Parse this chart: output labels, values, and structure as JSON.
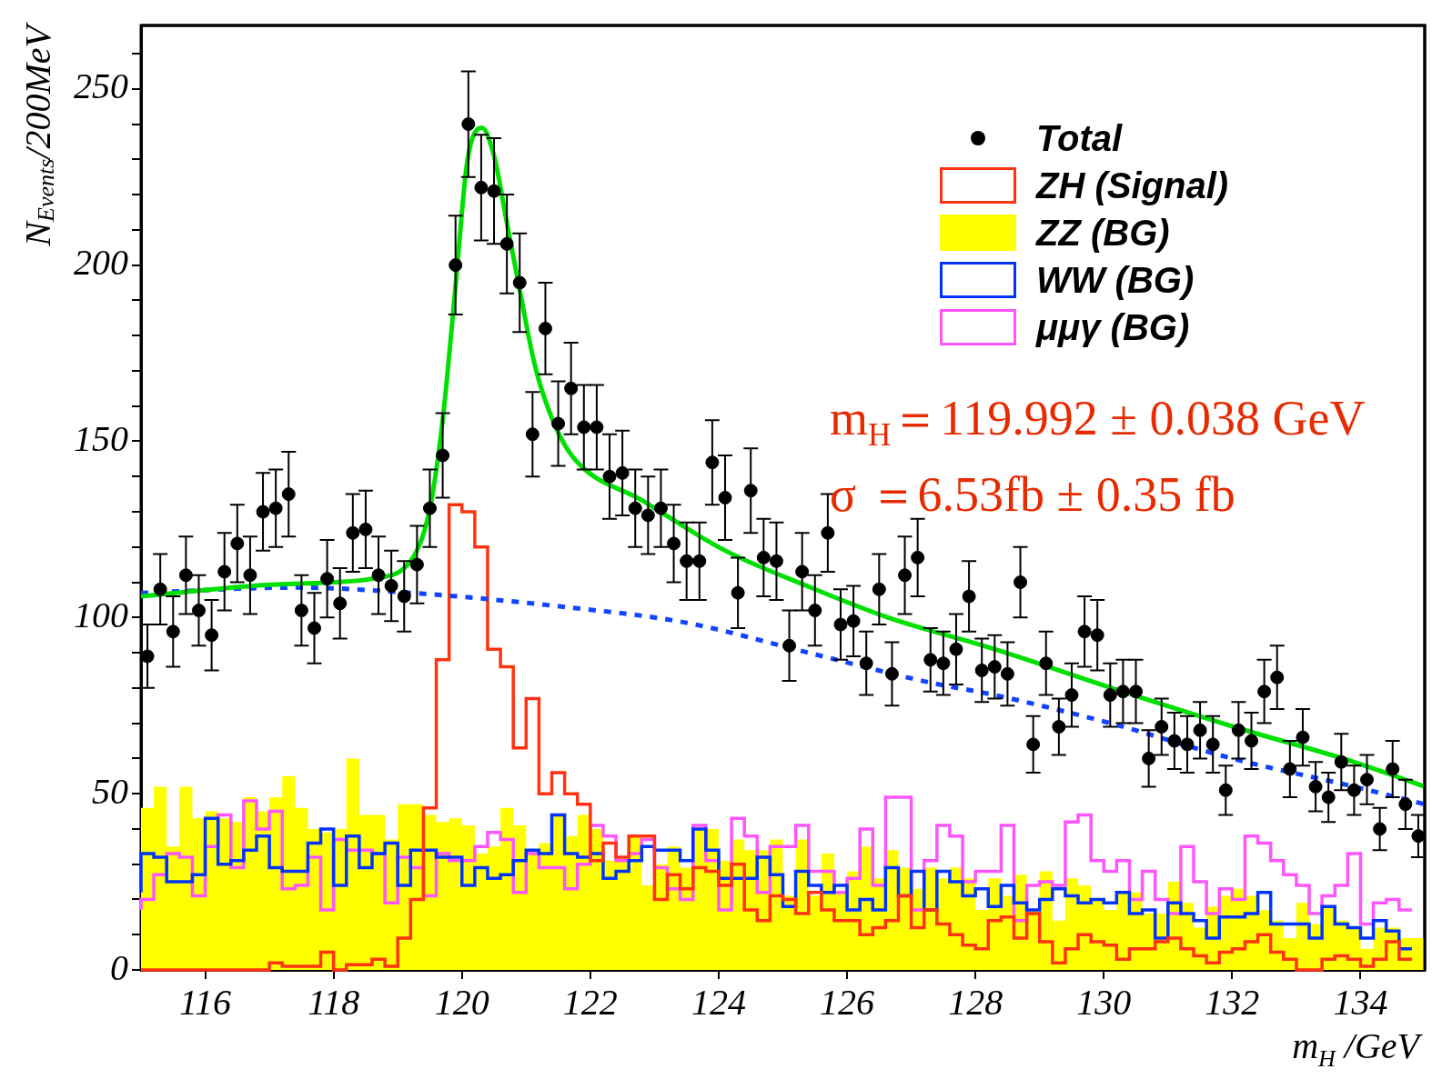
{
  "chart_data": {
    "type": "histogram",
    "xlabel": "m$_{H}$ /GeV",
    "ylabel": "N$_{Events}$/200MeV",
    "annotations": [
      "m$_{H}$＝119.992 ± 0.038 GeV",
      "σ ＝6.53fb ± 0.35 fb"
    ],
    "xlim": [
      115,
      135
    ],
    "xticks": [
      116,
      118,
      120,
      122,
      124,
      126,
      128,
      130,
      132,
      134
    ],
    "ylim": [
      0,
      268
    ],
    "yticks": [
      0,
      {
        "value": 10,
        "label": null
      },
      {
        "value": 20,
        "label": null
      },
      {
        "value": 30,
        "label": null
      },
      {
        "value": 40,
        "label": null
      },
      50,
      {
        "value": 60,
        "label": null
      },
      {
        "value": 70,
        "label": null
      },
      {
        "value": 80,
        "label": null
      },
      {
        "value": 90,
        "label": null
      },
      100,
      {
        "value": 110,
        "label": null
      },
      {
        "value": 120,
        "label": null
      },
      {
        "value": 130,
        "label": null
      },
      {
        "value": 140,
        "label": null
      },
      150,
      {
        "value": 160,
        "label": null
      },
      {
        "value": 170,
        "label": null
      },
      {
        "value": 180,
        "label": null
      },
      {
        "value": 190,
        "label": null
      },
      200,
      {
        "value": 210,
        "label": null
      },
      {
        "value": 220,
        "label": null
      },
      {
        "value": 230,
        "label": null
      },
      {
        "value": 240,
        "label": null
      },
      250,
      {
        "value": 260,
        "label": null
      }
    ],
    "legend": "top right",
    "bins": [
      115,
      115.2,
      115.4,
      115.6,
      115.8,
      116,
      116.2,
      116.4,
      116.6,
      116.8,
      117,
      117.2,
      117.4,
      117.6,
      117.8,
      118,
      118.2,
      118.4,
      118.6,
      118.8,
      119,
      119.2,
      119.4,
      119.6,
      119.8,
      120,
      120.2,
      120.4,
      120.6,
      120.8,
      121,
      121.2,
      121.4,
      121.6,
      121.8,
      122,
      122.2,
      122.4,
      122.6,
      122.8,
      123,
      123.2,
      123.4,
      123.6,
      123.8,
      124,
      124.2,
      124.4,
      124.6,
      124.8,
      125,
      125.2,
      125.4,
      125.6,
      125.8,
      126,
      126.2,
      126.4,
      126.6,
      126.8,
      127,
      127.2,
      127.4,
      127.6,
      127.8,
      128,
      128.2,
      128.4,
      128.6,
      128.8,
      129,
      129.2,
      129.4,
      129.6,
      129.8,
      130,
      130.2,
      130.4,
      130.6,
      130.8,
      131,
      131.2,
      131.4,
      131.6,
      131.8,
      132,
      132.2,
      132.4,
      132.6,
      132.8,
      133,
      133.2,
      133.4,
      133.6,
      133.8,
      134,
      134.2,
      134.4,
      134.6,
      134.8,
      135
    ],
    "series": [
      {
        "name": "Total",
        "type": "scatter",
        "marker": "circle",
        "color": "#000000",
        "x": [
          115.1,
          115.3,
          115.5,
          115.7,
          115.9,
          116.1,
          116.3,
          116.5,
          116.7,
          116.9,
          117.1,
          117.3,
          117.5,
          117.7,
          117.9,
          118.1,
          118.3,
          118.5,
          118.7,
          118.9,
          119.1,
          119.3,
          119.5,
          119.7,
          119.9,
          120.1,
          120.3,
          120.5,
          120.7,
          120.9,
          121.1,
          121.3,
          121.5,
          121.7,
          121.9,
          122.1,
          122.3,
          122.5,
          122.7,
          122.9,
          123.1,
          123.3,
          123.5,
          123.7,
          123.9,
          124.1,
          124.3,
          124.5,
          124.7,
          124.9,
          125.1,
          125.3,
          125.5,
          125.7,
          125.9,
          126.1,
          126.3,
          126.5,
          126.7,
          126.9,
          127.1,
          127.3,
          127.5,
          127.7,
          127.9,
          128.1,
          128.3,
          128.5,
          128.7,
          128.9,
          129.1,
          129.3,
          129.5,
          129.7,
          129.9,
          130.1,
          130.3,
          130.5,
          130.7,
          130.9,
          131.1,
          131.3,
          131.5,
          131.7,
          131.9,
          132.1,
          132.3,
          132.5,
          132.7,
          132.9,
          133.1,
          133.3,
          133.5,
          133.7,
          133.9,
          134.1,
          134.3,
          134.5,
          134.7,
          134.9
        ],
        "values": [
          89,
          108,
          96,
          112,
          102,
          95,
          113,
          121,
          112,
          130,
          131,
          135,
          102,
          97,
          111,
          104,
          124,
          125,
          112,
          109,
          106,
          115,
          131,
          146,
          200,
          240,
          222,
          221,
          206,
          195,
          152,
          182,
          155,
          165,
          154,
          154,
          140,
          141,
          131,
          129,
          131,
          121,
          116,
          116,
          144,
          134,
          107,
          136,
          117,
          116,
          92,
          113,
          102,
          124,
          98,
          99,
          87,
          108,
          84,
          112,
          117,
          88,
          87,
          91,
          106,
          85,
          86,
          84,
          110,
          64,
          87,
          69,
          78,
          96,
          95,
          78,
          79,
          79,
          60,
          69,
          65,
          64,
          68,
          64,
          51,
          68,
          65,
          79,
          83,
          57,
          66,
          52,
          49,
          59,
          51,
          54,
          40,
          57,
          47,
          38
        ],
        "errors": [
          9,
          10,
          10,
          11,
          10,
          10,
          11,
          11,
          11,
          11,
          11,
          12,
          10,
          10,
          11,
          10,
          11,
          11,
          11,
          10,
          10,
          11,
          11,
          12,
          14,
          15,
          15,
          15,
          14,
          14,
          12,
          13,
          12,
          13,
          12,
          12,
          12,
          12,
          11,
          11,
          11,
          11,
          11,
          11,
          12,
          12,
          10,
          12,
          11,
          11,
          10,
          11,
          10,
          11,
          10,
          10,
          9,
          10,
          9,
          11,
          11,
          9,
          9,
          10,
          10,
          9,
          9,
          9,
          10,
          8,
          9,
          8,
          9,
          10,
          10,
          9,
          9,
          9,
          8,
          8,
          8,
          8,
          8,
          8,
          7,
          8,
          8,
          9,
          9,
          8,
          8,
          7,
          7,
          8,
          7,
          7,
          6,
          8,
          7,
          6
        ]
      },
      {
        "name": "ZH (Signal)",
        "type": "step",
        "color": "#ff3311",
        "x": [
          115,
          115.2,
          115.4,
          115.6,
          115.8,
          116,
          116.2,
          116.4,
          116.6,
          116.8,
          117,
          117.2,
          117.4,
          117.6,
          117.8,
          118,
          118.2,
          118.4,
          118.6,
          118.8,
          119,
          119.2,
          119.4,
          119.6,
          119.8,
          120,
          120.2,
          120.4,
          120.6,
          120.8,
          121,
          121.2,
          121.4,
          121.6,
          121.8,
          122,
          122.2,
          122.4,
          122.6,
          122.8,
          123,
          123.2,
          123.4,
          123.6,
          123.8,
          124,
          124.2,
          124.4,
          124.6,
          124.8,
          125,
          125.2,
          125.4,
          125.6,
          125.8,
          126,
          126.2,
          126.4,
          126.6,
          126.8,
          127,
          127.2,
          127.4,
          127.6,
          127.8,
          128,
          128.2,
          128.4,
          128.6,
          128.8,
          129,
          129.2,
          129.4,
          129.6,
          129.8,
          130,
          130.2,
          130.4,
          130.6,
          130.8,
          131,
          131.2,
          131.4,
          131.6,
          131.8,
          132,
          132.2,
          132.4,
          132.6,
          132.8,
          133,
          133.2,
          133.4,
          133.6,
          133.8,
          134,
          134.2,
          134.4,
          134.6,
          134.8
        ],
        "values": [
          0,
          0,
          0,
          0,
          0,
          0,
          0,
          0,
          0,
          0,
          0,
          2,
          1,
          1,
          1,
          5,
          0,
          1.5,
          1.5,
          3,
          1,
          9,
          20,
          46,
          88,
          132,
          130,
          120,
          91,
          86,
          63,
          77,
          50,
          56,
          50,
          47,
          31,
          36,
          32,
          38,
          38,
          20,
          27,
          23,
          29,
          28,
          24,
          30,
          17,
          14,
          21,
          20,
          16,
          22,
          17,
          14,
          14,
          10,
          12,
          14,
          21,
          12,
          17,
          13,
          10,
          7,
          6,
          14,
          15,
          9,
          16,
          8,
          2,
          6,
          10,
          8,
          7,
          3,
          6,
          6,
          8,
          9,
          6,
          4,
          2,
          5,
          6,
          8,
          10,
          5,
          3,
          0,
          0,
          3,
          4,
          3,
          1,
          3,
          8,
          3
        ]
      },
      {
        "name": "ZZ (BG)",
        "color": "#ffff00",
        "values": [
          46,
          52,
          35,
          52,
          43,
          45,
          43,
          42,
          49,
          45,
          49,
          55,
          46,
          40,
          39,
          40,
          60,
          44,
          44,
          37,
          47,
          47,
          44,
          42,
          43,
          41,
          33,
          35,
          46,
          41,
          34,
          36,
          44,
          38,
          44,
          40,
          31,
          31,
          38,
          24,
          30,
          35,
          29,
          40,
          40,
          31,
          37,
          34,
          34,
          37,
          21,
          37,
          21,
          33,
          22,
          28,
          35,
          26,
          34,
          29,
          23,
          29,
          26,
          29,
          26,
          17,
          26,
          21,
          27,
          17,
          28,
          14,
          26,
          24,
          20,
          17,
          22,
          22,
          16,
          16,
          25,
          19,
          12,
          18,
          21,
          23,
          21,
          17,
          14,
          9,
          19,
          13,
          18,
          14,
          12,
          6,
          12,
          12,
          9,
          9
        ]
      },
      {
        "name": "WW (BG)",
        "type": "step",
        "color": "#0033ff",
        "x": [
          115,
          115.2,
          115.4,
          115.6,
          115.8,
          116,
          116.2,
          116.4,
          116.6,
          116.8,
          117,
          117.2,
          117.4,
          117.6,
          117.8,
          118,
          118.2,
          118.4,
          118.6,
          118.8,
          119,
          119.2,
          119.4,
          119.6,
          119.8,
          120,
          120.2,
          120.4,
          120.6,
          120.8,
          121,
          121.2,
          121.4,
          121.6,
          121.8,
          122,
          122.2,
          122.4,
          122.6,
          122.8,
          123,
          123.2,
          123.4,
          123.6,
          123.8,
          124,
          124.2,
          124.4,
          124.6,
          124.8,
          125,
          125.2,
          125.4,
          125.6,
          125.8,
          126,
          126.2,
          126.4,
          126.6,
          126.8,
          127,
          127.2,
          127.4,
          127.6,
          127.8,
          128,
          128.2,
          128.4,
          128.6,
          128.8,
          129,
          129.2,
          129.4,
          129.6,
          129.8,
          130,
          130.2,
          130.4,
          130.6,
          130.8,
          131,
          131.2,
          131.4,
          131.6,
          131.8,
          132,
          132.2,
          132.4,
          132.6,
          132.8,
          133,
          133.2,
          133.4,
          133.6,
          133.8,
          134,
          134.2,
          134.4,
          134.6,
          134.8
        ],
        "values": [
          22,
          33,
          32,
          25,
          25,
          27,
          43,
          30,
          31,
          34,
          38,
          29,
          28,
          28,
          36,
          40,
          24,
          38,
          29,
          33,
          36,
          24,
          34,
          34,
          32,
          32,
          24,
          29,
          26,
          27,
          31,
          34,
          33,
          44,
          33,
          32,
          33,
          26,
          28,
          31,
          35,
          34,
          34,
          31,
          40,
          34,
          26,
          26,
          26,
          32,
          27,
          18,
          28,
          24,
          22,
          24,
          17,
          20,
          17,
          29,
          21,
          28,
          17,
          28,
          25,
          21,
          23,
          18,
          24,
          19,
          17,
          20,
          23,
          21,
          19,
          20,
          19,
          22,
          16,
          17,
          9,
          19,
          16,
          14,
          9,
          15,
          15,
          16,
          22,
          13,
          13,
          13,
          9,
          18,
          13,
          12,
          9,
          14,
          11,
          6
        ]
      },
      {
        "name": "μμγ (BG)",
        "type": "step",
        "color": "#ff55ff",
        "x": [
          115,
          115.2,
          115.4,
          115.6,
          115.8,
          116,
          116.2,
          116.4,
          116.6,
          116.8,
          117,
          117.2,
          117.4,
          117.6,
          117.8,
          118,
          118.2,
          118.4,
          118.6,
          118.8,
          119,
          119.2,
          119.4,
          119.6,
          119.8,
          120,
          120.2,
          120.4,
          120.6,
          120.8,
          121,
          121.2,
          121.4,
          121.6,
          121.8,
          122,
          122.2,
          122.4,
          122.6,
          122.8,
          123,
          123.2,
          123.4,
          123.6,
          123.8,
          124,
          124.2,
          124.4,
          124.6,
          124.8,
          125,
          125.2,
          125.4,
          125.6,
          125.8,
          126,
          126.2,
          126.4,
          126.6,
          126.8,
          127,
          127.2,
          127.4,
          127.6,
          127.8,
          128,
          128.2,
          128.4,
          128.6,
          128.8,
          129,
          129.2,
          129.4,
          129.6,
          129.8,
          130,
          130.2,
          130.4,
          130.6,
          130.8,
          131,
          131.2,
          131.4,
          131.6,
          131.8,
          132,
          132.2,
          132.4,
          132.6,
          132.8,
          133,
          133.2,
          133.4,
          133.6,
          133.8,
          134,
          134.2,
          134.4,
          134.6,
          134.8
        ],
        "values": [
          17,
          20,
          27,
          33,
          32,
          21,
          35,
          44,
          29,
          48,
          40,
          45,
          23,
          24,
          32,
          17,
          37,
          34,
          34,
          33,
          19,
          32,
          29,
          21,
          33,
          31,
          31,
          35,
          39,
          37,
          22,
          33,
          29,
          29,
          23,
          30,
          41,
          38,
          31,
          33,
          37,
          29,
          23,
          20,
          41,
          31,
          17,
          43,
          38,
          22,
          35,
          35,
          41,
          28,
          28,
          22,
          26,
          40,
          24,
          49,
          49,
          17,
          31,
          41,
          38,
          25,
          28,
          28,
          41,
          14,
          24,
          25,
          24,
          42,
          44,
          31,
          28,
          31,
          20,
          28,
          20,
          16,
          35,
          25,
          16,
          23,
          20,
          38,
          36,
          31,
          27,
          24,
          16,
          21,
          24,
          33,
          13,
          19,
          20,
          17
        ]
      },
      {
        "type": "line",
        "color": "#00e000",
        "x": [
          115,
          116.75,
          117.98,
          118.6,
          119.2,
          119.49,
          119.7,
          119.9,
          120.08,
          120.31,
          120.5,
          120.69,
          120.9,
          121.13,
          121.37,
          121.71,
          122.83,
          124.1,
          125.37,
          126.64,
          128.3,
          130.12,
          132.02,
          133.9,
          135
        ],
        "values": [
          106,
          109,
          110,
          111,
          116,
          130,
          156,
          194,
          229,
          239,
          231,
          213,
          193,
          172,
          158,
          146,
          133,
          119,
          109,
          100,
          91,
          80,
          69,
          59,
          52
        ]
      },
      {
        "type": "line",
        "color": "#1144ff",
        "line_style": "dotted",
        "x": [
          115,
          117.4,
          119.2,
          121.6,
          123.5,
          125.4,
          127.3,
          128.3,
          130.1,
          132,
          133.9,
          135
        ],
        "values": [
          107,
          108.5,
          107,
          103,
          98.5,
          90,
          81.5,
          78,
          70,
          60,
          52,
          47
        ]
      }
    ]
  }
}
